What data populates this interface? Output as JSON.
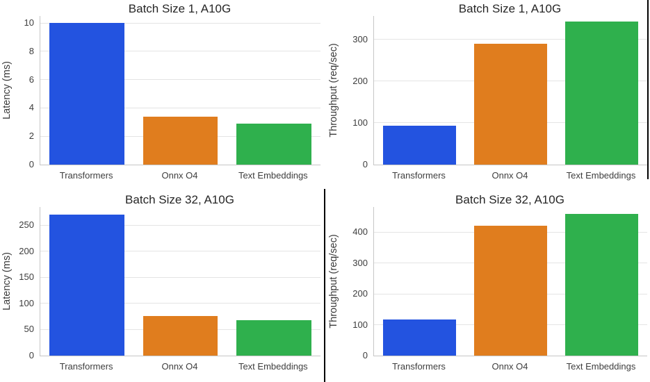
{
  "figure": {
    "description": "Benchmark bar charts, A10G GPU",
    "background": "#ffffff"
  },
  "palette": {
    "blue": "#2353e0",
    "orange": "#e07d1e",
    "green": "#2fb04d",
    "grid": "#e4e4e4",
    "spine": "#c6c6c6",
    "title_color": "#262626",
    "tick_color": "#3d3d3d",
    "border_artifact": "#000000"
  },
  "chart_data": [
    {
      "type": "bar",
      "title": "Batch Size 1, A10G",
      "xlabel": "",
      "ylabel": "Latency (ms)",
      "categories": [
        "Transformers",
        "Onnx O4",
        "Text Embeddings"
      ],
      "values": [
        10.0,
        3.4,
        2.9
      ],
      "bar_colors": [
        "blue",
        "orange",
        "green"
      ],
      "yticks": [
        0,
        2,
        4,
        6,
        8,
        10
      ],
      "ylim": [
        0,
        10.5
      ],
      "grid": true,
      "legend": false
    },
    {
      "type": "bar",
      "title": "Batch Size 1, A10G",
      "xlabel": "",
      "ylabel": "Throughput (req/sec)",
      "categories": [
        "Transformers",
        "Onnx O4",
        "Text Embeddings"
      ],
      "values": [
        93,
        289,
        343
      ],
      "bar_colors": [
        "blue",
        "orange",
        "green"
      ],
      "yticks": [
        0,
        100,
        200,
        300
      ],
      "ylim": [
        0,
        356
      ],
      "grid": true,
      "legend": false
    },
    {
      "type": "bar",
      "title": "Batch Size 32, A10G",
      "xlabel": "",
      "ylabel": "Latency (ms)",
      "categories": [
        "Transformers",
        "Onnx O4",
        "Text Embeddings"
      ],
      "values": [
        270,
        76,
        68
      ],
      "bar_colors": [
        "blue",
        "orange",
        "green"
      ],
      "yticks": [
        0,
        50,
        100,
        150,
        200,
        250
      ],
      "ylim": [
        0,
        285
      ],
      "grid": true,
      "legend": false
    },
    {
      "type": "bar",
      "title": "Batch Size 32, A10G",
      "xlabel": "",
      "ylabel": "Throughput (req/sec)",
      "categories": [
        "Transformers",
        "Onnx O4",
        "Text Embeddings"
      ],
      "values": [
        116,
        421,
        458
      ],
      "bar_colors": [
        "blue",
        "orange",
        "green"
      ],
      "yticks": [
        0,
        100,
        200,
        300,
        400
      ],
      "ylim": [
        0,
        481
      ],
      "grid": true,
      "legend": false
    }
  ]
}
